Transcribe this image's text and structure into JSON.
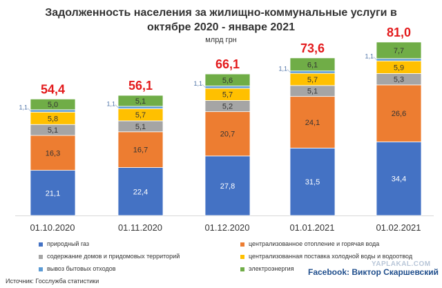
{
  "title_line1": "Задолженность населения за жилищно-коммунальные услуги в",
  "title_line2": "октябре 2020 - январе 2021",
  "unit": "млрд грн",
  "source": "Источник: Госслужба статистики",
  "watermark": "YAPLAKAL.COM",
  "credit_prefix": "Facebook:",
  "credit_name": "Виктор Скаршевский",
  "chart_data": {
    "type": "bar",
    "stacked": true,
    "categories": [
      "01.10.2020",
      "01.11.2020",
      "01.12.2020",
      "01.01.2021",
      "01.02.2021"
    ],
    "totals": [
      "54,4",
      "56,1",
      "66,1",
      "73,6",
      "81,0"
    ],
    "total_values": [
      54.4,
      56.1,
      66.1,
      73.6,
      81.0
    ],
    "series": [
      {
        "name": "природный газ",
        "color": "#4472c4",
        "values": [
          21.1,
          22.4,
          27.8,
          31.5,
          34.4
        ],
        "labels": [
          "21,1",
          "22,4",
          "27,8",
          "31,5",
          "34,4"
        ]
      },
      {
        "name": "централизованное отопление и горячая вода",
        "color": "#ed7d31",
        "values": [
          16.3,
          16.7,
          20.7,
          24.1,
          26.6
        ],
        "labels": [
          "16,3",
          "16,7",
          "20,7",
          "24,1",
          "26,6"
        ]
      },
      {
        "name": "содержание домов и придомовых территорий",
        "color": "#a5a5a5",
        "values": [
          5.1,
          5.1,
          5.2,
          5.1,
          5.3
        ],
        "labels": [
          "5,1",
          "5,1",
          "5,2",
          "5,1",
          "5,3"
        ]
      },
      {
        "name": "централизованная поставка холодной воды и водоотвод",
        "color": "#ffc000",
        "values": [
          5.8,
          5.7,
          5.7,
          5.7,
          5.9
        ],
        "labels": [
          "5,8",
          "5,7",
          "5,7",
          "5,7",
          "5,9"
        ]
      },
      {
        "name": "вывоз бытовых отходов",
        "color": "#5b9bd5",
        "values": [
          1.1,
          1.1,
          1.1,
          1.1,
          1.1
        ],
        "labels": [
          "1,1",
          "1,1",
          "1,1",
          "1,1",
          "1,1"
        ]
      },
      {
        "name": "электроэнергия",
        "color": "#70ad47",
        "values": [
          5.0,
          5.1,
          5.6,
          6.1,
          7.7
        ],
        "labels": [
          "5,0",
          "5,1",
          "5,6",
          "6,1",
          "7,7"
        ]
      }
    ],
    "total_color": "#e31a1c",
    "ylim": [
      0,
      90
    ],
    "grid": false,
    "legend_position": "bottom"
  }
}
